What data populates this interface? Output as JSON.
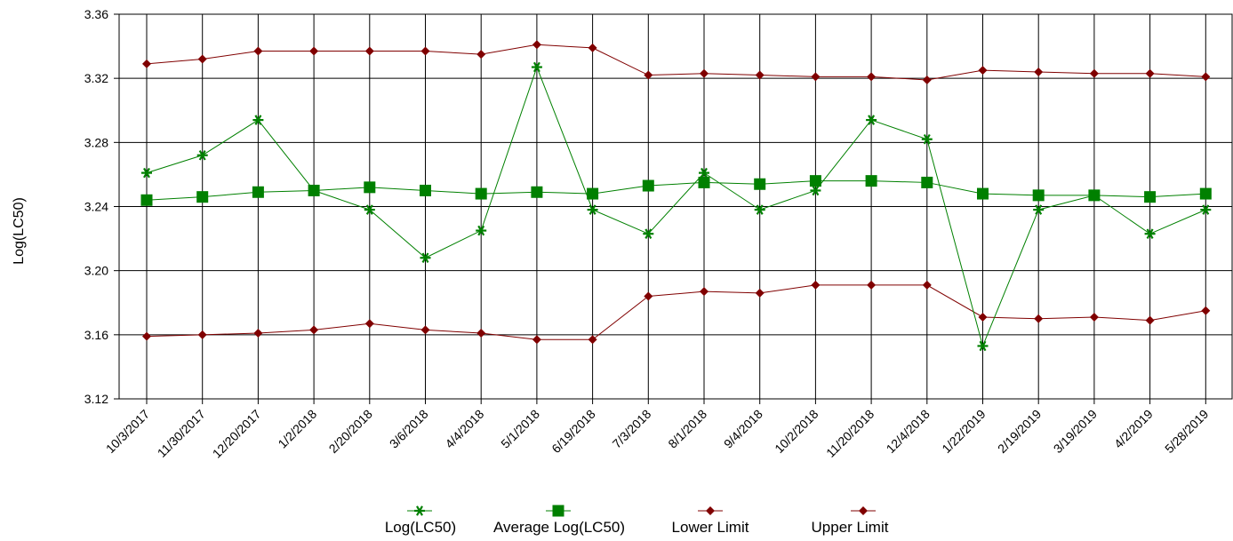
{
  "chart_data": {
    "type": "line",
    "ylabel": "Log(LC50)",
    "xlabel": "",
    "ylim": [
      3.12,
      3.36
    ],
    "yticks": [
      "3.12",
      "3.16",
      "3.20",
      "3.24",
      "3.28",
      "3.32",
      "3.36"
    ],
    "grid": true,
    "legend_position": "bottom-center",
    "categories": [
      "10/3/2017",
      "11/30/2017",
      "12/20/2017",
      "1/2/2018",
      "2/20/2018",
      "3/6/2018",
      "4/4/2018",
      "5/1/2018",
      "6/19/2018",
      "7/3/2018",
      "8/1/2018",
      "9/4/2018",
      "10/2/2018",
      "11/20/2018",
      "12/4/2018",
      "1/22/2019",
      "2/19/2019",
      "3/19/2019",
      "4/2/2019",
      "5/28/2019"
    ],
    "series": [
      {
        "name": "Log(LC50)",
        "color": "#008000",
        "marker": "star",
        "values": [
          3.261,
          3.272,
          3.294,
          3.25,
          3.238,
          3.208,
          3.225,
          3.327,
          3.238,
          3.223,
          3.261,
          3.238,
          3.25,
          3.294,
          3.282,
          3.153,
          3.238,
          3.247,
          3.223,
          3.238
        ]
      },
      {
        "name": "Average Log(LC50)",
        "color": "#008000",
        "marker": "square",
        "values": [
          3.244,
          3.246,
          3.249,
          3.25,
          3.252,
          3.25,
          3.248,
          3.249,
          3.248,
          3.253,
          3.255,
          3.254,
          3.256,
          3.256,
          3.255,
          3.248,
          3.247,
          3.247,
          3.246,
          3.248
        ]
      },
      {
        "name": "Lower Limit",
        "color": "#800000",
        "marker": "diamond",
        "values": [
          3.159,
          3.16,
          3.161,
          3.163,
          3.167,
          3.163,
          3.161,
          3.157,
          3.157,
          3.184,
          3.187,
          3.186,
          3.191,
          3.191,
          3.191,
          3.171,
          3.17,
          3.171,
          3.169,
          3.175
        ]
      },
      {
        "name": "Upper Limit",
        "color": "#800000",
        "marker": "diamond",
        "values": [
          3.329,
          3.332,
          3.337,
          3.337,
          3.337,
          3.337,
          3.335,
          3.341,
          3.339,
          3.322,
          3.323,
          3.322,
          3.321,
          3.321,
          3.319,
          3.325,
          3.324,
          3.323,
          3.323,
          3.321
        ]
      }
    ]
  }
}
